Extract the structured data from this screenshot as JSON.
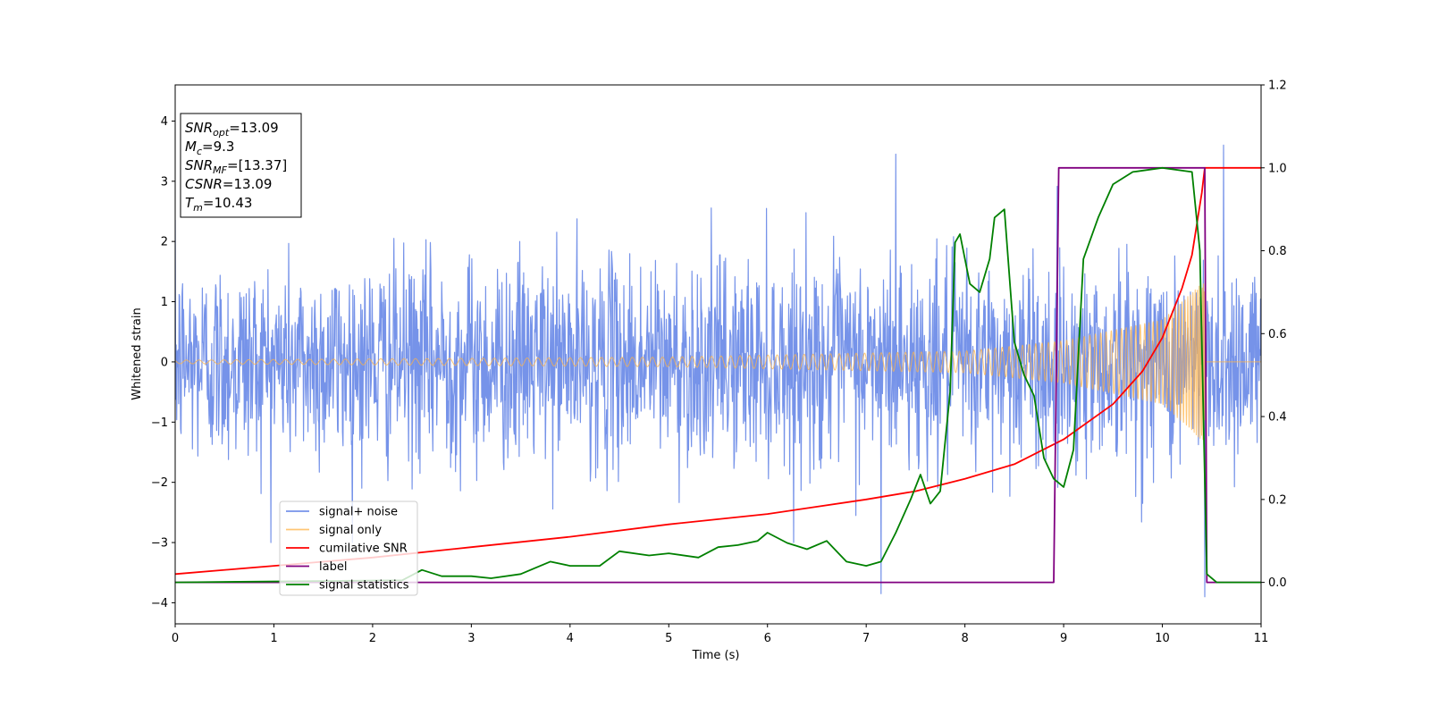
{
  "chart_data": {
    "type": "line",
    "xlabel": "Time (s)",
    "ylabel": "Whitened strain",
    "xlim": [
      0,
      11
    ],
    "ylim": [
      -4.35,
      4.6
    ],
    "y2lim": [
      -0.1,
      1.2
    ],
    "xticks": [
      "0",
      "1",
      "2",
      "3",
      "4",
      "5",
      "6",
      "7",
      "8",
      "9",
      "10",
      "11"
    ],
    "yticks": [
      "−4",
      "−3",
      "−2",
      "−1",
      "0",
      "1",
      "2",
      "3",
      "4"
    ],
    "y2ticks": [
      "0.0",
      "0.2",
      "0.4",
      "0.6",
      "0.8",
      "1.0",
      "1.2"
    ],
    "grid": false,
    "legend_position": "lower-left",
    "info_box": {
      "position": "top-left",
      "lines": [
        {
          "base": "SNR",
          "sub": "opt",
          "value": "=13.09"
        },
        {
          "base": "M",
          "sub": "c",
          "value": "=9.3"
        },
        {
          "base": "SNR",
          "sub": "MF",
          "value": "=[13.37]"
        },
        {
          "base": "CSNR",
          "sub": "",
          "value": "=13.09"
        },
        {
          "base": "T",
          "sub": "m",
          "value": "=10.43"
        }
      ]
    },
    "series": [
      {
        "name": "signal+ noise",
        "axis": "left",
        "color": "#4169e1",
        "opacity": 0.72,
        "sample_rate_hz": 200,
        "noise_sigma": 0.85,
        "typical_envelope": [
          -2.0,
          2.0
        ],
        "extremes": [
          [
            7.3,
            3.45
          ],
          [
            10.62,
            3.6
          ],
          [
            7.15,
            -3.85
          ],
          [
            10.43,
            -3.9
          ]
        ]
      },
      {
        "name": "signal only",
        "axis": "left",
        "color": "#ffb347",
        "opacity": 0.75,
        "kind": "chirp",
        "merger_time": 10.43,
        "amplitude_envelope": [
          [
            0,
            0.03
          ],
          [
            5,
            0.08
          ],
          [
            8,
            0.18
          ],
          [
            9,
            0.35
          ],
          [
            10,
            0.7
          ],
          [
            10.4,
            1.3
          ]
        ]
      },
      {
        "name": "cumilative SNR",
        "axis": "right",
        "color": "#ff0000",
        "x": [
          0,
          1,
          2,
          3,
          4,
          5,
          6,
          7,
          7.5,
          8,
          8.5,
          9,
          9.5,
          9.8,
          10,
          10.2,
          10.3,
          10.4,
          10.43,
          11
        ],
        "y": [
          0.02,
          0.04,
          0.06,
          0.085,
          0.11,
          0.14,
          0.165,
          0.2,
          0.22,
          0.25,
          0.285,
          0.345,
          0.43,
          0.51,
          0.59,
          0.71,
          0.79,
          0.94,
          1.0,
          1.0
        ]
      },
      {
        "name": "label",
        "axis": "right",
        "color": "#800080",
        "x": [
          0,
          8.9,
          8.95,
          10.43,
          10.45,
          11
        ],
        "y": [
          0.0,
          0.0,
          1.0,
          1.0,
          0.0,
          0.0
        ]
      },
      {
        "name": "signal statistics",
        "axis": "right",
        "color": "#008000",
        "x": [
          0,
          2.3,
          2.5,
          2.7,
          3.0,
          3.2,
          3.5,
          3.8,
          4.0,
          4.3,
          4.5,
          4.8,
          5.0,
          5.3,
          5.5,
          5.7,
          5.9,
          6.0,
          6.2,
          6.4,
          6.6,
          6.8,
          7.0,
          7.15,
          7.3,
          7.45,
          7.55,
          7.65,
          7.75,
          7.85,
          7.9,
          7.95,
          8.05,
          8.15,
          8.25,
          8.3,
          8.4,
          8.5,
          8.6,
          8.7,
          8.8,
          8.9,
          9.0,
          9.1,
          9.2,
          9.35,
          9.5,
          9.7,
          10.0,
          10.3,
          10.38,
          10.45,
          10.55,
          10.7,
          11
        ],
        "y": [
          0.0,
          0.005,
          0.03,
          0.015,
          0.015,
          0.01,
          0.02,
          0.05,
          0.04,
          0.04,
          0.075,
          0.065,
          0.07,
          0.06,
          0.085,
          0.09,
          0.1,
          0.12,
          0.095,
          0.08,
          0.1,
          0.05,
          0.04,
          0.05,
          0.12,
          0.2,
          0.26,
          0.19,
          0.22,
          0.46,
          0.82,
          0.84,
          0.72,
          0.7,
          0.78,
          0.88,
          0.9,
          0.58,
          0.5,
          0.45,
          0.3,
          0.25,
          0.23,
          0.32,
          0.78,
          0.88,
          0.96,
          0.99,
          1.0,
          0.99,
          0.8,
          0.02,
          0.0,
          0.0,
          0.0
        ]
      }
    ]
  }
}
